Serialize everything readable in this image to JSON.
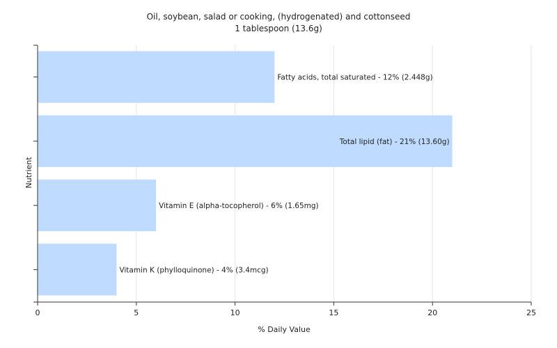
{
  "chart_data": {
    "type": "bar",
    "orientation": "horizontal",
    "title": "Oil, soybean, salad or cooking, (hydrogenated) and cottonseed",
    "subtitle": "1 tablespoon (13.6g)",
    "xlabel": "% Daily Value",
    "ylabel": "Nutrient",
    "xlim": [
      0,
      25
    ],
    "xticks": [
      0,
      5,
      10,
      15,
      20,
      25
    ],
    "grid": true,
    "legend": "none",
    "bar_color": "#bfdbff",
    "categories": [
      "Fatty acids, total saturated",
      "Total lipid (fat)",
      "Vitamin E (alpha-tocopherol)",
      "Vitamin K (phylloquinone)"
    ],
    "values": [
      12,
      21,
      6,
      4
    ],
    "data_labels": [
      "Fatty acids, total saturated - 12% (2.448g)",
      "Total lipid (fat) - 21% (13.60g)",
      "Vitamin E (alpha-tocopherol) - 6% (1.65mg)",
      "Vitamin K (phylloquinone) - 4% (3.4mcg)"
    ]
  }
}
